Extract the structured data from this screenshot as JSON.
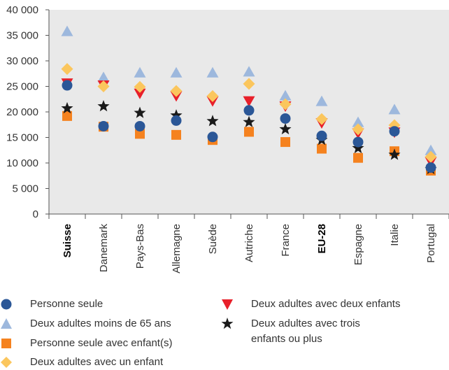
{
  "chart_data": {
    "type": "scatter",
    "categories": [
      "Suisse",
      "Danemark",
      "Pays-Bas",
      "Allemagne",
      "Suède",
      "Autriche",
      "France",
      "EU-28",
      "Espagne",
      "Italie",
      "Portugal"
    ],
    "bold_categories": [
      "Suisse",
      "EU-28"
    ],
    "ylim": [
      0,
      40000
    ],
    "yticks": [
      "0",
      "5 000",
      "10 000",
      "15 000",
      "20 000",
      "25 000",
      "30 000",
      "35 000",
      "40 000"
    ],
    "grid": false,
    "legend_position": "bottom",
    "series": [
      {
        "name": "Personne seule",
        "marker": "circle",
        "color": "#2b5797",
        "values": [
          25200,
          17200,
          17200,
          18300,
          15100,
          20300,
          18700,
          15300,
          14100,
          16200,
          9100
        ]
      },
      {
        "name": "Deux adultes moins de 65 ans",
        "marker": "triangle-up",
        "color": "#9db8dd",
        "values": [
          35800,
          26800,
          27700,
          27700,
          27700,
          27900,
          23200,
          22100,
          18000,
          20500,
          12500
        ]
      },
      {
        "name": "Personne seule avec enfant(s)",
        "marker": "square",
        "color": "#f5821f",
        "values": [
          19200,
          17100,
          15700,
          15500,
          14500,
          16100,
          14100,
          12800,
          11000,
          12300,
          8500
        ]
      },
      {
        "name": "Deux adultes avec un enfant",
        "marker": "diamond",
        "color": "#fbc65d",
        "values": [
          28400,
          25000,
          24900,
          24100,
          23100,
          25500,
          21500,
          18600,
          16600,
          17400,
          11200
        ]
      },
      {
        "name": "Deux adultes avec deux enfants",
        "marker": "triangle-down",
        "color": "#e8202a",
        "values": [
          25600,
          25200,
          23600,
          23100,
          22100,
          22100,
          21100,
          17800,
          15800,
          16000,
          10200
        ]
      },
      {
        "name": "Deux adultes avec trois enfants ou plus",
        "marker": "star",
        "color": "#1a1a1a",
        "values": [
          20700,
          21100,
          19800,
          19300,
          18200,
          18000,
          16600,
          14500,
          12900,
          11600,
          8800
        ]
      }
    ]
  },
  "legend": [
    {
      "label": "Personne seule",
      "marker": "circle",
      "color": "#2b5797"
    },
    {
      "label": "Deux adultes moins de 65 ans",
      "marker": "triangle-up",
      "color": "#9db8dd"
    },
    {
      "label": "Personne seule avec enfant(s)",
      "marker": "square",
      "color": "#f5821f"
    },
    {
      "label": "Deux adultes avec un enfant",
      "marker": "diamond",
      "color": "#fbc65d"
    },
    {
      "label": "Deux adultes avec deux enfants",
      "marker": "triangle-down",
      "color": "#e8202a"
    },
    {
      "label": "Deux adultes avec trois enfants ou plus",
      "marker": "star",
      "color": "#1a1a1a"
    }
  ]
}
